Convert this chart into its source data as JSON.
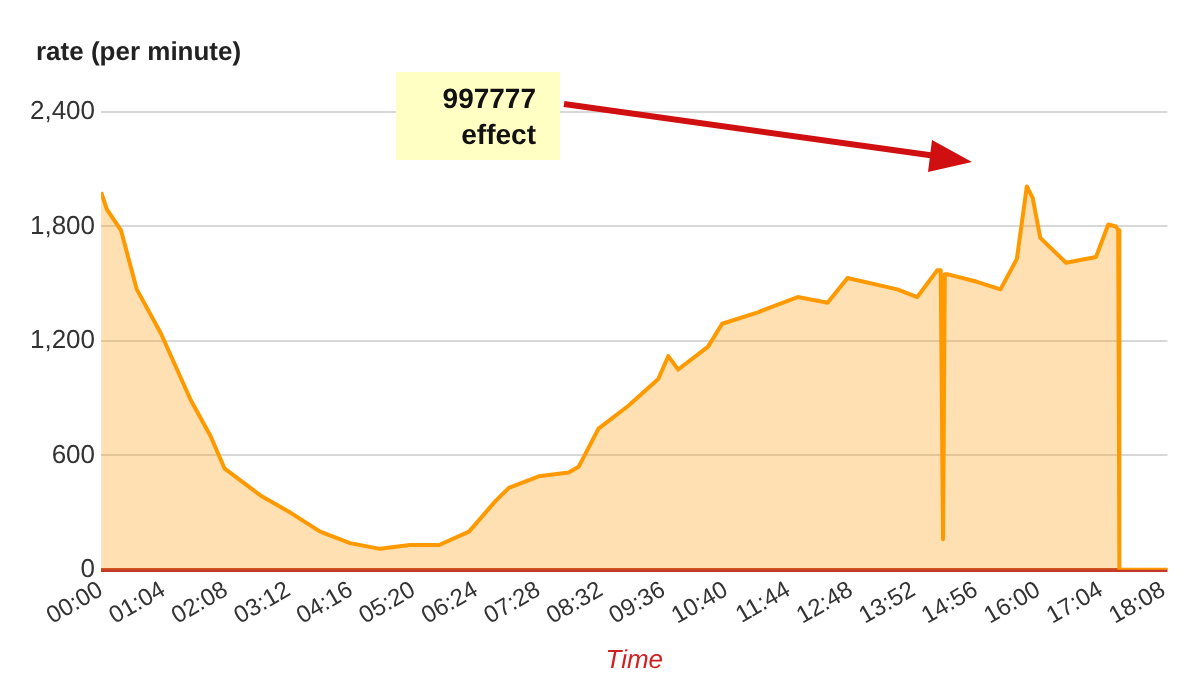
{
  "chart_data": {
    "type": "area",
    "title": "rate (per minute)",
    "xlabel": "Time",
    "x": [
      0,
      0.1,
      0.34,
      0.61,
      1.02,
      1.53,
      1.87,
      2.11,
      2.72,
      3.23,
      3.74,
      4.25,
      4.76,
      5.27,
      5.77,
      6.28,
      6.73,
      6.96,
      7.47,
      7.98,
      8.15,
      8.49,
      9.0,
      9.51,
      9.68,
      9.85,
      10.36,
      10.6,
      11.21,
      11.89,
      12.4,
      12.74,
      13.59,
      13.93,
      14.27,
      14.33,
      14.37,
      14.4,
      14.44,
      14.95,
      15.35,
      15.63,
      15.8,
      15.9,
      16.03,
      16.47,
      16.98,
      17.19,
      17.32,
      17.36,
      17.38,
      18.2
    ],
    "series": [
      {
        "color": "#ff9900",
        "values": [
          1980,
          1890,
          1780,
          1470,
          1240,
          890,
          700,
          530,
          390,
          300,
          200,
          140,
          110,
          130,
          130,
          200,
          360,
          430,
          490,
          510,
          540,
          740,
          860,
          1000,
          1120,
          1050,
          1170,
          1290,
          1350,
          1430,
          1400,
          1530,
          1470,
          1430,
          1570,
          1570,
          160,
          1550,
          1550,
          1510,
          1470,
          1630,
          2010,
          1950,
          1740,
          1610,
          1640,
          1810,
          1800,
          1780,
          0,
          0
        ]
      }
    ],
    "xlim": [
      0,
      18.2
    ],
    "xticks": [
      {
        "value": 0,
        "label": "00:00"
      },
      {
        "value": 1.0667,
        "label": "01:04"
      },
      {
        "value": 2.1333,
        "label": "02:08"
      },
      {
        "value": 3.2,
        "label": "03:12"
      },
      {
        "value": 4.2667,
        "label": "04:16"
      },
      {
        "value": 5.3333,
        "label": "05:20"
      },
      {
        "value": 6.4,
        "label": "06:24"
      },
      {
        "value": 7.4667,
        "label": "07:28"
      },
      {
        "value": 8.5333,
        "label": "08:32"
      },
      {
        "value": 9.6,
        "label": "09:36"
      },
      {
        "value": 10.6667,
        "label": "10:40"
      },
      {
        "value": 11.7333,
        "label": "11:44"
      },
      {
        "value": 12.8,
        "label": "12:48"
      },
      {
        "value": 13.8667,
        "label": "13:52"
      },
      {
        "value": 14.9333,
        "label": "14:56"
      },
      {
        "value": 16,
        "label": "16:00"
      },
      {
        "value": 17.0667,
        "label": "17:04"
      },
      {
        "value": 18.1333,
        "label": "18:08"
      }
    ],
    "ylim": [
      0,
      2400
    ],
    "yticks": [
      0,
      600,
      {
        "value": 1200,
        "label": "1,200"
      },
      {
        "value": 1800,
        "label": "1,800"
      },
      {
        "value": 2400,
        "label": "2,400"
      }
    ],
    "grid": "y",
    "legend": false,
    "marker": "none",
    "line_style": "solid",
    "annotations": [
      "997777\neffect"
    ]
  }
}
